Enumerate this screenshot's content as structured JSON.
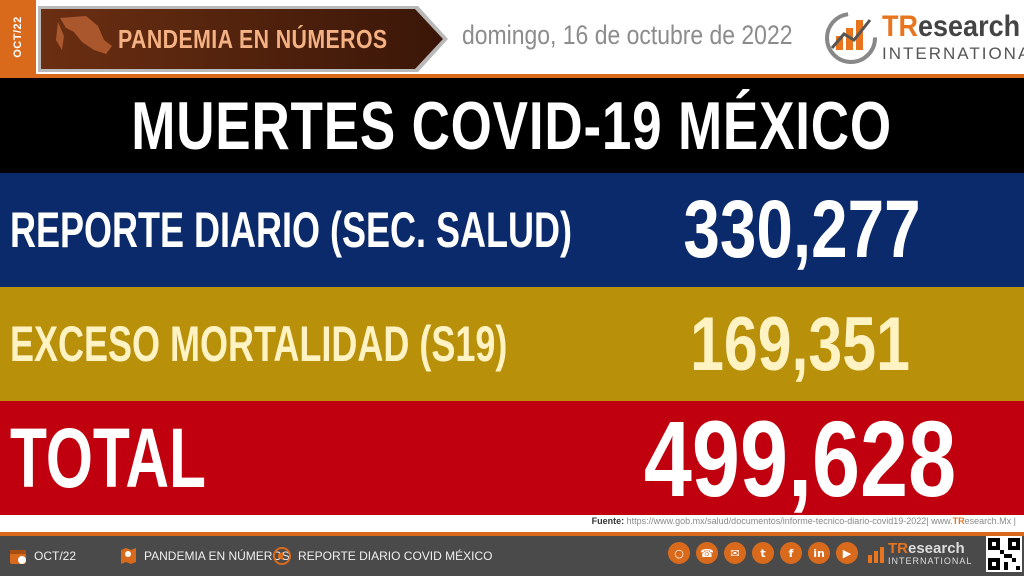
{
  "header": {
    "side_tab": "OCT/22",
    "banner_label": "PANDEMIA EN NÚMEROS",
    "date": "domingo, 16 de octubre de 2022",
    "logo": {
      "brand_accent": "TR",
      "brand_rest": "esearch",
      "sub": "INTERNATIONAL"
    }
  },
  "title": "MUERTES COVID-19 MÉXICO",
  "rows": [
    {
      "label": "REPORTE DIARIO (SEC. SALUD)",
      "value": "330,277",
      "color": "#0b2a6b"
    },
    {
      "label": "EXCESO MORTALIDAD (S19)",
      "value": "169,351",
      "color": "#b8900a"
    },
    {
      "label": "TOTAL",
      "value": "499,628",
      "color": "#c0000f"
    }
  ],
  "source": {
    "prefix": "Fuente:",
    "url": "https://www.gob.mx/salud/documentos/informe-tecnico-diario-covid19-2022",
    "site_pre": "| www.",
    "site_accent": "TR",
    "site_post": "esearch.Mx |"
  },
  "footer": {
    "items": [
      {
        "label": "OCT/22",
        "icon": "calendar-icon"
      },
      {
        "label": "PANDEMIA EN NÚMEROS",
        "icon": "map-icon"
      },
      {
        "label": "REPORTE DIARIO COVID MÉXICO",
        "icon": "megaphone-icon"
      }
    ],
    "socials": [
      "globe-icon",
      "phone-icon",
      "email-icon",
      "twitter-icon",
      "facebook-icon",
      "linkedin-icon",
      "youtube-icon"
    ],
    "logo": {
      "brand_accent": "TR",
      "brand_rest": "esearch",
      "sub": "INTERNATIONAL"
    }
  },
  "colors": {
    "accent": "#d96a1c",
    "title_bg": "#000000",
    "footer_bg": "#4a4a4a"
  }
}
